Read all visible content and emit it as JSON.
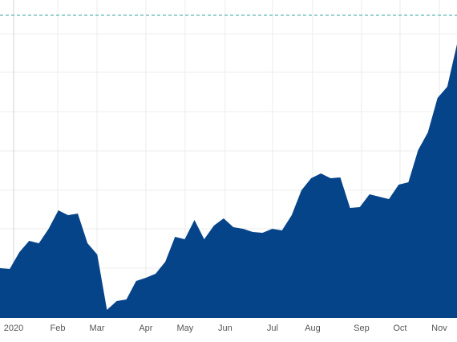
{
  "chart_data": {
    "type": "area",
    "values": [
      62,
      61,
      82,
      96,
      93,
      111,
      134,
      128,
      130,
      93,
      79,
      10,
      21,
      23,
      46,
      50,
      55,
      70,
      101,
      98,
      122,
      98,
      115,
      124,
      113,
      111,
      107,
      106,
      111,
      109,
      128,
      159,
      174,
      180,
      174,
      175,
      137,
      138,
      154,
      151,
      148,
      166,
      169,
      209,
      231,
      274,
      288,
      341
    ],
    "color": "#06448a",
    "xlim": [
      0,
      47
    ],
    "xticks": [
      {
        "value": 1.4,
        "label": "2020"
      },
      {
        "value": 5.94,
        "label": "Feb"
      },
      {
        "value": 9.98,
        "label": "Mar"
      },
      {
        "value": 15.0,
        "label": "Apr"
      },
      {
        "value": 19.04,
        "label": "May"
      },
      {
        "value": 23.16,
        "label": "Jun"
      },
      {
        "value": 28.03,
        "label": "Jul"
      },
      {
        "value": 32.15,
        "label": "Aug"
      },
      {
        "value": 37.18,
        "label": "Sep"
      },
      {
        "value": 41.14,
        "label": "Oct"
      },
      {
        "value": 45.18,
        "label": "Nov"
      }
    ],
    "ylim": [
      0,
      396
    ],
    "ygrid": [
      13,
      62,
      111,
      159,
      208,
      257,
      306,
      354
    ],
    "grid": true,
    "reference_value": 377,
    "reference_color": "#3aa6a0"
  }
}
